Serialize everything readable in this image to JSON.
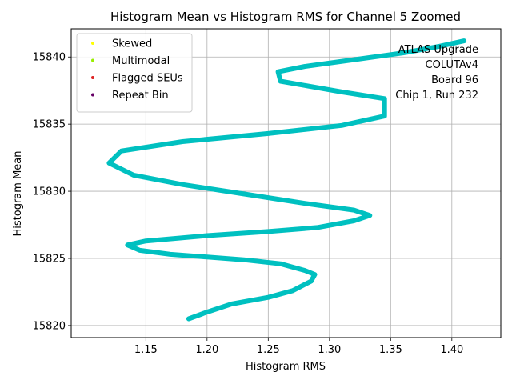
{
  "chart_data": {
    "type": "scatter",
    "title": "Histogram Mean vs Histogram RMS for Channel 5 Zoomed",
    "xlabel": "Histogram RMS",
    "ylabel": "Histogram Mean",
    "xlim": [
      1.089,
      1.44
    ],
    "ylim": [
      15819.1,
      15842.1
    ],
    "xticks": [
      1.15,
      1.2,
      1.25,
      1.3,
      1.35,
      1.4
    ],
    "xtick_labels": [
      "1.15",
      "1.20",
      "1.25",
      "1.30",
      "1.35",
      "1.40"
    ],
    "yticks": [
      15820,
      15825,
      15830,
      15835,
      15840
    ],
    "ytick_labels": [
      "15820",
      "15825",
      "15830",
      "15835",
      "15840"
    ],
    "grid": true,
    "legend_position": "top-left",
    "legend": [
      {
        "label": "Skewed",
        "color": "#ffff00"
      },
      {
        "label": "Multimodal",
        "color": "#99ee00"
      },
      {
        "label": "Flagged SEUs",
        "color": "#dd2222"
      },
      {
        "label": "Repeat Bin",
        "color": "#660066"
      }
    ],
    "annotation": [
      "ATLAS Upgrade",
      "COLUTAv4",
      "Board 96",
      "Chip 1, Run 232"
    ],
    "series": [
      {
        "color": "#00c0c0",
        "x": [
          1.185,
          1.2,
          1.22,
          1.25,
          1.27,
          1.285,
          1.288,
          1.28,
          1.26,
          1.23,
          1.2,
          1.17,
          1.145,
          1.135,
          1.15,
          1.2,
          1.25,
          1.29,
          1.32,
          1.333,
          1.32,
          1.28,
          1.23,
          1.18,
          1.14,
          1.12,
          1.13,
          1.18,
          1.25,
          1.31,
          1.345,
          1.345,
          1.31,
          1.26,
          1.258,
          1.28,
          1.32,
          1.36,
          1.39,
          1.41
        ],
        "y": [
          15820.5,
          15821.0,
          15821.6,
          15822.1,
          15822.6,
          15823.3,
          15823.8,
          15824.1,
          15824.6,
          15824.9,
          15825.1,
          15825.3,
          15825.6,
          15826.0,
          15826.3,
          15826.7,
          15827.0,
          15827.3,
          15827.8,
          15828.2,
          15828.6,
          15829.1,
          15829.8,
          15830.5,
          15831.2,
          15832.1,
          15833.0,
          15833.7,
          15834.3,
          15834.9,
          15835.6,
          15836.9,
          15837.4,
          15838.2,
          15838.9,
          15839.3,
          15839.8,
          15840.3,
          15840.8,
          15841.2
        ]
      }
    ]
  }
}
